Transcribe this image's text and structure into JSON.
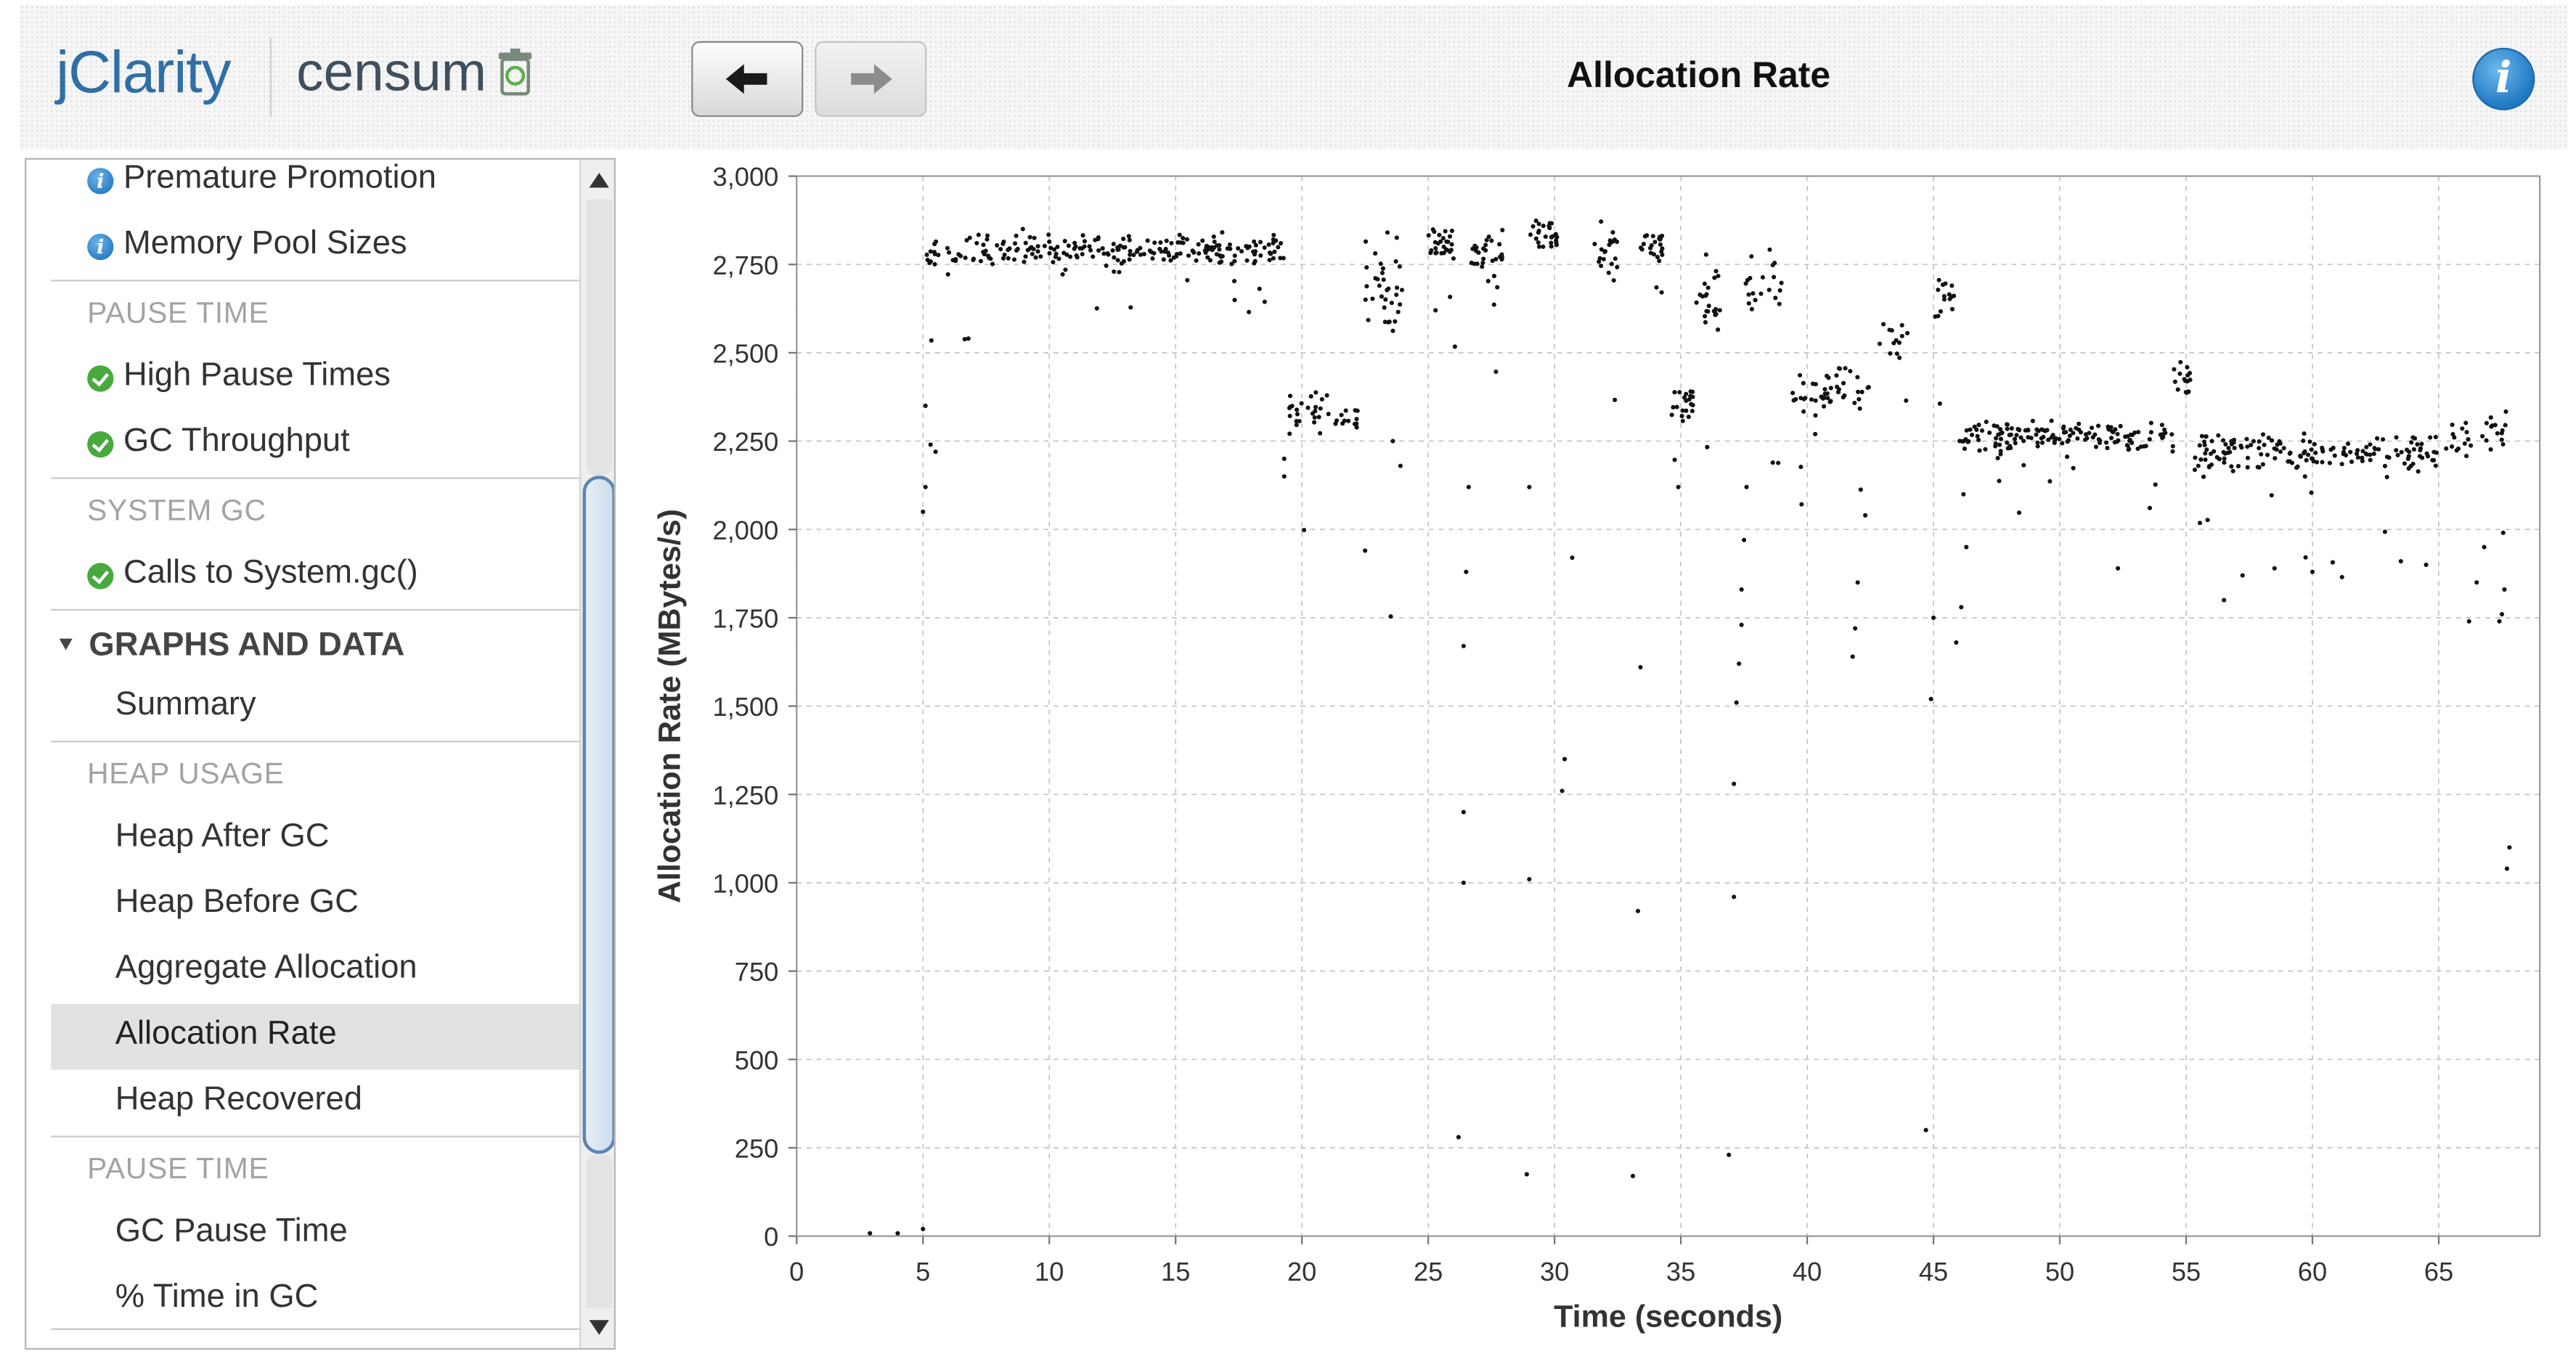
{
  "header": {
    "logo_primary": "jClarity",
    "logo_secondary": "censum",
    "title": "Allocation Rate",
    "info_symbol": "i"
  },
  "sidebar": {
    "rows": [
      {
        "kind": "item",
        "icon": "info-icon",
        "label": "Premature Promotion"
      },
      {
        "kind": "item",
        "icon": "info-icon",
        "label": "Memory Pool Sizes"
      },
      {
        "kind": "section",
        "label": "PAUSE TIME"
      },
      {
        "kind": "item",
        "icon": "check-icon",
        "label": "High Pause Times"
      },
      {
        "kind": "item",
        "icon": "check-icon",
        "label": "GC Throughput"
      },
      {
        "kind": "section",
        "label": "SYSTEM GC"
      },
      {
        "kind": "item",
        "icon": "check-icon",
        "label": "Calls to System.gc()"
      },
      {
        "kind": "group",
        "label": "GRAPHS AND DATA"
      },
      {
        "kind": "item",
        "icon": "",
        "label": "Summary"
      },
      {
        "kind": "section",
        "label": "HEAP USAGE"
      },
      {
        "kind": "item",
        "icon": "",
        "label": "Heap After GC"
      },
      {
        "kind": "item",
        "icon": "",
        "label": "Heap Before GC"
      },
      {
        "kind": "item",
        "icon": "",
        "label": "Aggregate Allocation"
      },
      {
        "kind": "item",
        "icon": "",
        "label": "Allocation Rate",
        "selected": true
      },
      {
        "kind": "item",
        "icon": "",
        "label": "Heap Recovered"
      },
      {
        "kind": "section",
        "label": "PAUSE TIME"
      },
      {
        "kind": "item",
        "icon": "",
        "label": "GC Pause Time"
      },
      {
        "kind": "item",
        "icon": "",
        "label": "% Time in GC"
      }
    ]
  },
  "colors": {
    "brand_blue": "#2f6fa6",
    "check_green": "#48a93d",
    "info_blue": "#2a7cc7",
    "point": "#111111"
  },
  "chart_data": {
    "type": "scatter",
    "title": "",
    "xlabel": "Time (seconds)",
    "ylabel": "Allocation Rate (MBytes/s)",
    "xlim": [
      0,
      69
    ],
    "ylim": [
      0,
      3000
    ],
    "x_ticks": [
      0,
      5,
      10,
      15,
      20,
      25,
      30,
      35,
      40,
      45,
      50,
      55,
      60,
      65
    ],
    "y_ticks": [
      0,
      250,
      500,
      750,
      1000,
      1250,
      1500,
      1750,
      2000,
      2250,
      2500,
      2750,
      3000
    ],
    "y_tick_labels": [
      "0",
      "250",
      "500",
      "750",
      "1,000",
      "1,250",
      "1,500",
      "1,750",
      "2,000",
      "2,250",
      "2,500",
      "2,750",
      "3,000"
    ],
    "grid": true,
    "clusters": [
      {
        "x0": 5.1,
        "x1": 19.3,
        "y": 2790,
        "spread": 45,
        "n": 240
      },
      {
        "x0": 19.5,
        "x1": 22.3,
        "y": 2330,
        "spread": 60,
        "n": 40
      },
      {
        "x0": 22.5,
        "x1": 24.0,
        "y": 2700,
        "spread": 160,
        "n": 35
      },
      {
        "x0": 25.0,
        "x1": 26.1,
        "y": 2810,
        "spread": 50,
        "n": 30
      },
      {
        "x0": 26.7,
        "x1": 28.0,
        "y": 2770,
        "spread": 100,
        "n": 30
      },
      {
        "x0": 29.0,
        "x1": 30.1,
        "y": 2830,
        "spread": 50,
        "n": 25
      },
      {
        "x0": 31.5,
        "x1": 32.5,
        "y": 2780,
        "spread": 80,
        "n": 22
      },
      {
        "x0": 33.4,
        "x1": 34.3,
        "y": 2800,
        "spread": 70,
        "n": 24
      },
      {
        "x0": 34.6,
        "x1": 35.5,
        "y": 2350,
        "spread": 60,
        "n": 22
      },
      {
        "x0": 35.6,
        "x1": 36.6,
        "y": 2650,
        "spread": 110,
        "n": 24
      },
      {
        "x0": 37.5,
        "x1": 39.0,
        "y": 2700,
        "spread": 110,
        "n": 22
      },
      {
        "x0": 39.3,
        "x1": 41.0,
        "y": 2380,
        "spread": 55,
        "n": 30
      },
      {
        "x0": 41.0,
        "x1": 42.5,
        "y": 2400,
        "spread": 60,
        "n": 20
      },
      {
        "x0": 42.7,
        "x1": 44.0,
        "y": 2540,
        "spread": 50,
        "n": 14
      },
      {
        "x0": 45.0,
        "x1": 45.9,
        "y": 2650,
        "spread": 90,
        "n": 16
      },
      {
        "x0": 46.0,
        "x1": 54.5,
        "y": 2265,
        "spread": 40,
        "n": 160
      },
      {
        "x0": 54.5,
        "x1": 55.2,
        "y": 2430,
        "spread": 90,
        "n": 16
      },
      {
        "x0": 55.3,
        "x1": 65.0,
        "y": 2220,
        "spread": 60,
        "n": 170
      },
      {
        "x0": 65.0,
        "x1": 67.7,
        "y": 2260,
        "spread": 60,
        "n": 30
      }
    ],
    "points": [
      [
        2.9,
        8
      ],
      [
        4.0,
        8
      ],
      [
        5.0,
        20
      ],
      [
        5.0,
        2050
      ],
      [
        5.1,
        2120
      ],
      [
        5.1,
        2350
      ],
      [
        5.3,
        2240
      ],
      [
        5.5,
        2220
      ],
      [
        19.3,
        2150
      ],
      [
        19.3,
        2200
      ],
      [
        22.5,
        1940
      ],
      [
        23.6,
        2250
      ],
      [
        23.9,
        2180
      ],
      [
        26.2,
        280
      ],
      [
        26.4,
        1200
      ],
      [
        26.4,
        1000
      ],
      [
        26.4,
        1670
      ],
      [
        26.5,
        1880
      ],
      [
        26.6,
        2120
      ],
      [
        28.9,
        175
      ],
      [
        29.0,
        1010
      ],
      [
        29.0,
        2120
      ],
      [
        30.3,
        1260
      ],
      [
        30.4,
        1350
      ],
      [
        30.7,
        1920
      ],
      [
        33.1,
        170
      ],
      [
        33.3,
        920
      ],
      [
        33.4,
        1610
      ],
      [
        34.9,
        2120
      ],
      [
        36.9,
        230
      ],
      [
        37.1,
        960
      ],
      [
        37.1,
        1280
      ],
      [
        37.2,
        1510
      ],
      [
        37.3,
        1620
      ],
      [
        37.4,
        1730
      ],
      [
        37.4,
        1830
      ],
      [
        37.5,
        1970
      ],
      [
        37.6,
        2120
      ],
      [
        41.8,
        1640
      ],
      [
        41.9,
        1720
      ],
      [
        42.0,
        1850
      ],
      [
        42.3,
        2040
      ],
      [
        44.7,
        300
      ],
      [
        44.9,
        1520
      ],
      [
        45.0,
        1750
      ],
      [
        45.9,
        1680
      ],
      [
        46.1,
        1780
      ],
      [
        46.3,
        1950
      ],
      [
        52.3,
        1890
      ],
      [
        56.5,
        1800
      ],
      [
        58.5,
        1890
      ],
      [
        60.0,
        1880
      ],
      [
        63.5,
        1910
      ],
      [
        64.5,
        1900
      ],
      [
        66.2,
        1740
      ],
      [
        66.5,
        1850
      ],
      [
        66.8,
        1950
      ],
      [
        67.4,
        1740
      ],
      [
        67.5,
        1760
      ],
      [
        67.6,
        1830
      ],
      [
        67.7,
        1040
      ],
      [
        67.8,
        1100
      ]
    ]
  }
}
